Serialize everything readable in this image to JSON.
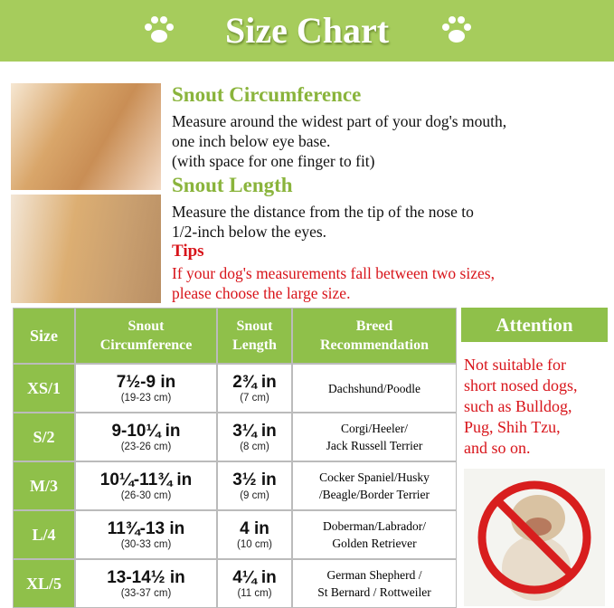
{
  "header": {
    "title": "Size Chart"
  },
  "sections": [
    {
      "heading": "Snout Circumference",
      "lines": [
        "Measure around the widest part of your dog's mouth,",
        "one inch below eye base.",
        "(with space for one finger to fit)"
      ]
    },
    {
      "heading": "Snout Length",
      "lines": [
        "Measure the distance from the tip of the nose to",
        "1/2-inch below the eyes."
      ]
    }
  ],
  "tips": {
    "heading": "Tips",
    "lines": [
      "If your dog's measurements fall between two sizes,",
      "please choose the large size."
    ]
  },
  "table": {
    "headers": [
      [
        "Size"
      ],
      [
        "Snout",
        "Circumference"
      ],
      [
        "Snout",
        "Length"
      ],
      [
        "Breed",
        "Recommendation"
      ]
    ],
    "rows": [
      {
        "size": "XS/1",
        "circumference": "7½-9 in",
        "circumference_cm": "(19-23 cm)",
        "length": "2¾ in",
        "length_cm": "(7 cm)",
        "breed": [
          "Dachshund/Poodle"
        ]
      },
      {
        "size": "S/2",
        "circumference": "9-10¼ in",
        "circumference_cm": "(23-26 cm)",
        "length": "3¼ in",
        "length_cm": "(8 cm)",
        "breed": [
          "Corgi/Heeler/",
          "Jack Russell Terrier"
        ]
      },
      {
        "size": "M/3",
        "circumference": "10¼-11¾ in",
        "circumference_cm": "(26-30 cm)",
        "length": "3½ in",
        "length_cm": "(9 cm)",
        "breed": [
          "Cocker Spaniel/Husky",
          "/Beagle/Border Terrier"
        ]
      },
      {
        "size": "L/4",
        "circumference": "11¾-13 in",
        "circumference_cm": "(30-33 cm)",
        "length": "4 in",
        "length_cm": "(10 cm)",
        "breed": [
          "Doberman/Labrador/",
          "Golden Retriever"
        ]
      },
      {
        "size": "XL/5",
        "circumference": "13-14½ in",
        "circumference_cm": "(33-37 cm)",
        "length": "4¼ in",
        "length_cm": "(11 cm)",
        "breed": [
          "German Shepherd /",
          "St Bernard / Rottweiler"
        ]
      }
    ]
  },
  "attention": {
    "heading": "Attention",
    "lines": [
      "Not suitable for",
      "short nosed dogs,",
      "such as Bulldog,",
      "Pug, Shih Tzu,",
      "and so on."
    ]
  }
}
